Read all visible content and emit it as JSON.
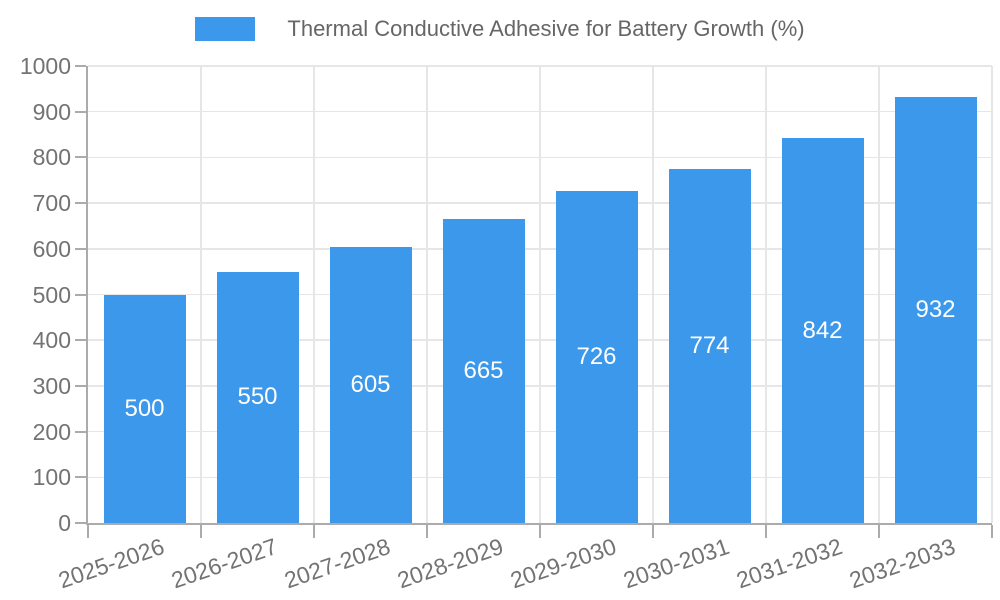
{
  "chart_data": {
    "type": "bar",
    "title": "Thermal Conductive Adhesive for Battery Growth (%)",
    "legend_position": "top",
    "categories": [
      "2025-2026",
      "2026-2027",
      "2027-2028",
      "2028-2029",
      "2029-2030",
      "2030-2031",
      "2031-2032",
      "2032-2033"
    ],
    "values": [
      500,
      550,
      605,
      665,
      726,
      774,
      842,
      932
    ],
    "xlabel": "",
    "ylabel": "",
    "ylim": [
      0,
      1000
    ],
    "ytick_step": 100,
    "ytick_labels": [
      "0",
      "100",
      "200",
      "300",
      "400",
      "500",
      "600",
      "700",
      "800",
      "900",
      "1000"
    ],
    "grid": true,
    "x_label_rotation_deg": -19,
    "colors": {
      "bar": "#3C98EB",
      "bar_value_text": "#FFFFFF",
      "axis_text": "#737373",
      "legend_text": "#666666",
      "gridline": "#E6E6E6",
      "axis_line": "#ABABAB"
    }
  }
}
